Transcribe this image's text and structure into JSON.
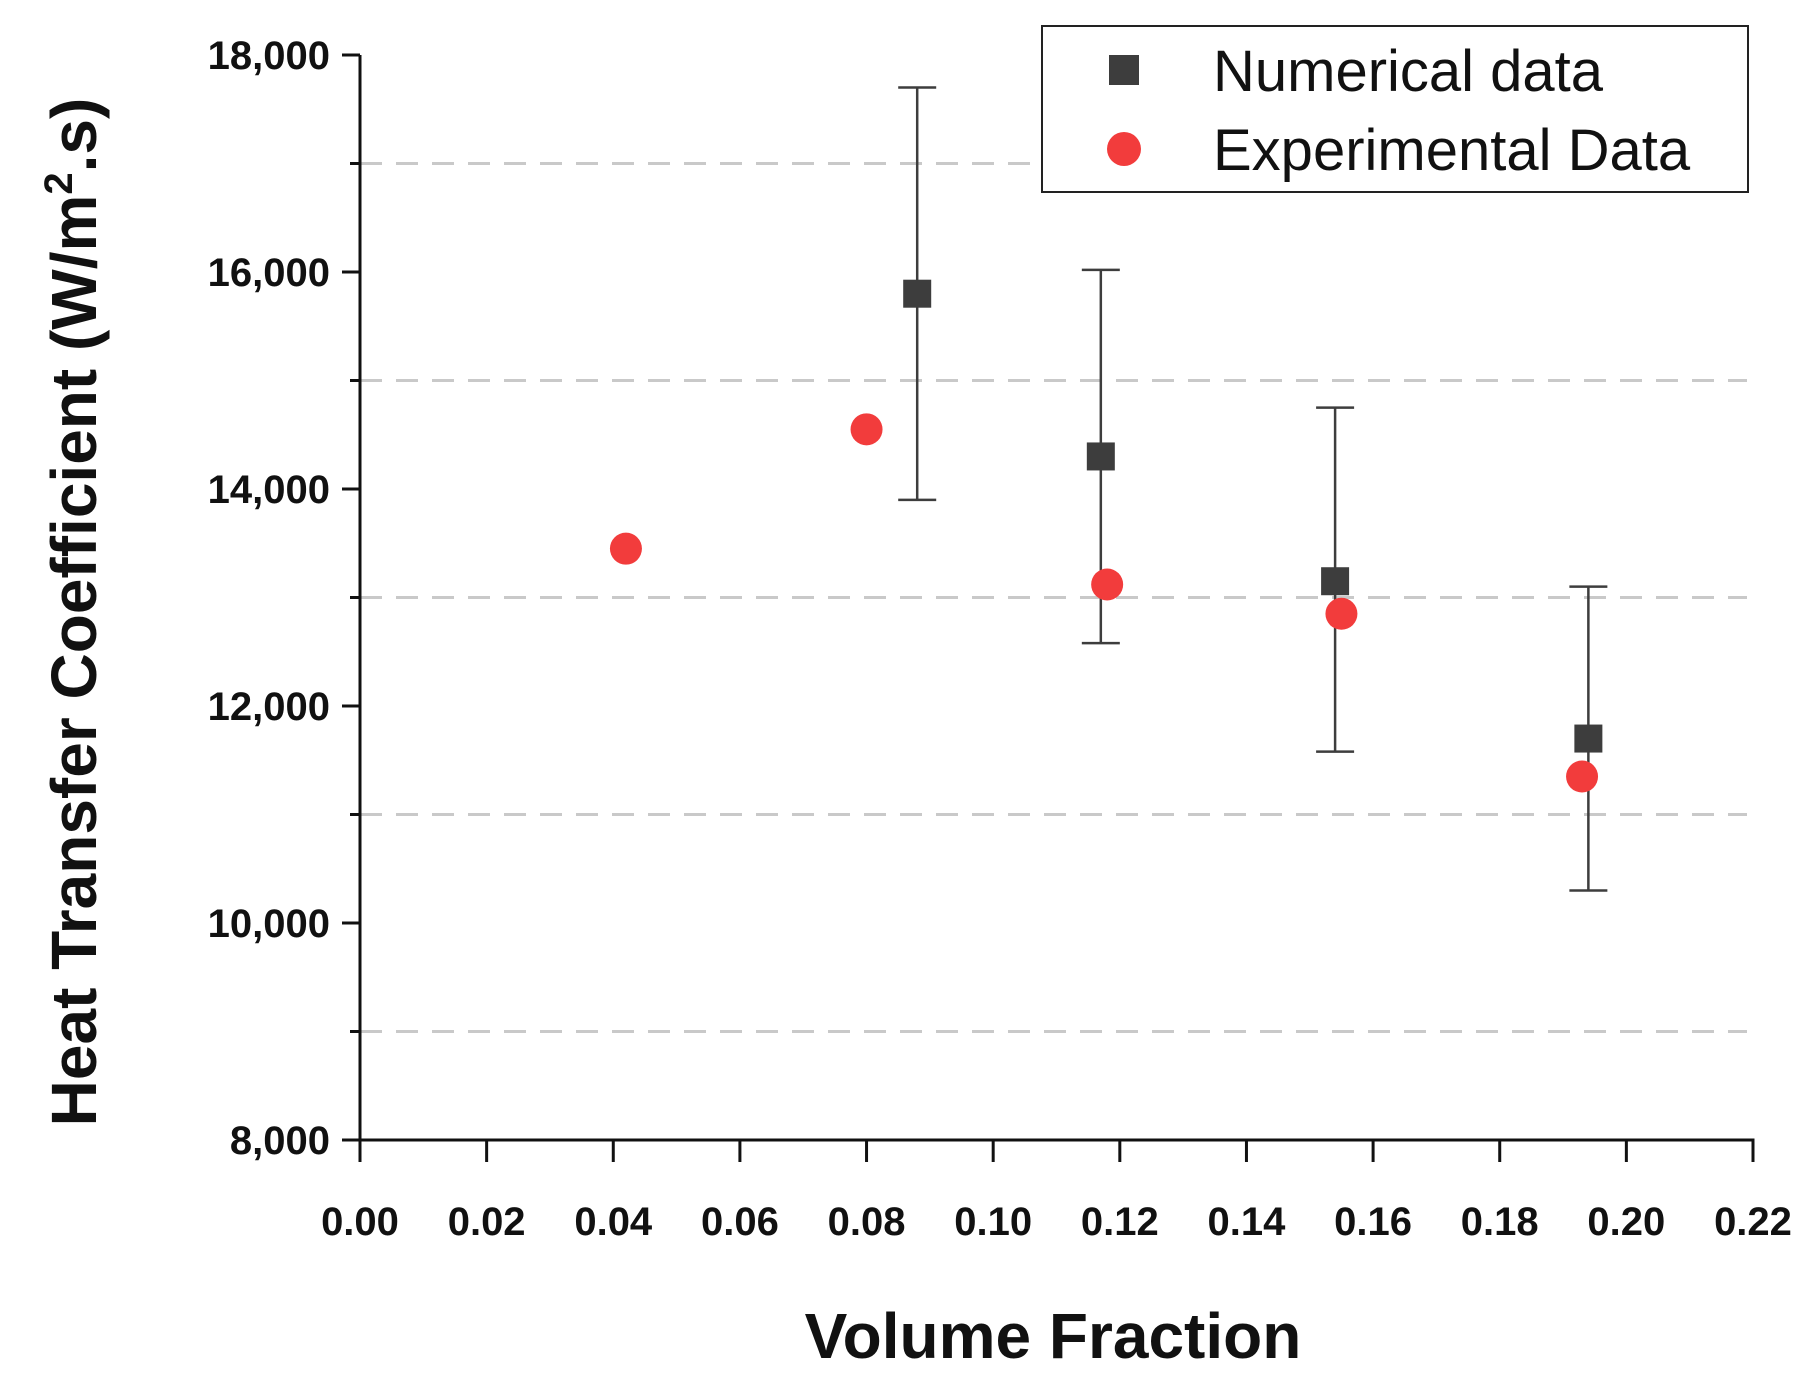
{
  "chart_data": {
    "type": "scatter",
    "title": "",
    "xlabel": "Volume Fraction",
    "ylabel": {
      "prefix": "Heat Transfer Coefficient (W/m",
      "sup": "2",
      "suffix": ".s)"
    },
    "xlim": [
      0.0,
      0.22
    ],
    "ylim": [
      8000,
      18000
    ],
    "x_ticks": [
      "0.00",
      "0.02",
      "0.04",
      "0.06",
      "0.08",
      "0.10",
      "0.12",
      "0.14",
      "0.16",
      "0.18",
      "0.20",
      "0.22"
    ],
    "y_ticks": [
      "8,000",
      "10,000",
      "12,000",
      "14,000",
      "16,000",
      "18,000"
    ],
    "grid": "horizontal dashed lines at 9,000 / 11,000 / 13,000 / 15,000 / 17,000",
    "grid_lines": [
      9000,
      11000,
      13000,
      15000,
      17000
    ],
    "legend_position": "top-right",
    "series": [
      {
        "name": "Numerical data",
        "marker": "square",
        "color": "#3d3d3d",
        "x": [
          0.088,
          0.117,
          0.154,
          0.194
        ],
        "y": [
          15800,
          14300,
          13150,
          11700
        ],
        "error_low": [
          13900,
          12580,
          11580,
          10300
        ],
        "error_high": [
          17700,
          16020,
          14750,
          13100
        ]
      },
      {
        "name": "Experimental Data",
        "marker": "circle",
        "color": "#f23c3c",
        "x": [
          0.042,
          0.08,
          0.118,
          0.155,
          0.193
        ],
        "y": [
          13450,
          14550,
          13120,
          12850,
          11350
        ]
      }
    ]
  }
}
